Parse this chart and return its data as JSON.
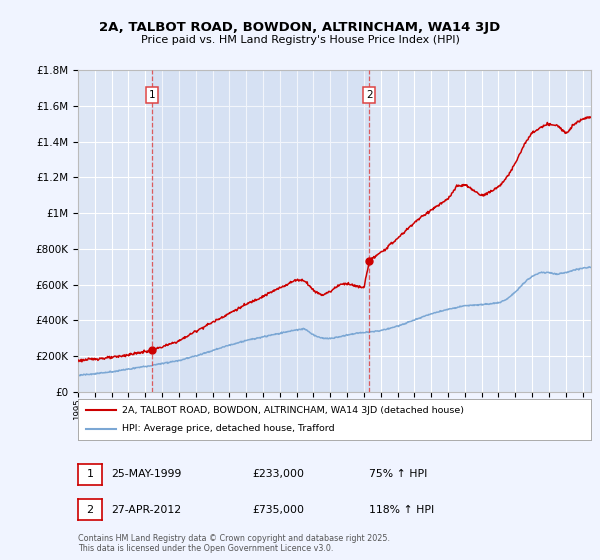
{
  "title": "2A, TALBOT ROAD, BOWDON, ALTRINCHAM, WA14 3JD",
  "subtitle": "Price paid vs. HM Land Registry's House Price Index (HPI)",
  "bg_color": "#f0f4ff",
  "plot_bg_color": "#dde6f5",
  "grid_color": "#ffffff",
  "red_line_color": "#cc0000",
  "blue_line_color": "#7ba7d4",
  "marker_color": "#cc0000",
  "dashed_line_color": "#dd4444",
  "legend_label_red": "2A, TALBOT ROAD, BOWDON, ALTRINCHAM, WA14 3JD (detached house)",
  "legend_label_blue": "HPI: Average price, detached house, Trafford",
  "purchase1_x": 1999.39,
  "purchase1_y": 233000,
  "purchase2_x": 2012.32,
  "purchase2_y": 735000,
  "footer": "Contains HM Land Registry data © Crown copyright and database right 2025.\nThis data is licensed under the Open Government Licence v3.0.",
  "ann1_date": "25-MAY-1999",
  "ann1_price": "£233,000",
  "ann1_hpi": "75% ↑ HPI",
  "ann2_date": "27-APR-2012",
  "ann2_price": "£735,000",
  "ann2_hpi": "118% ↑ HPI",
  "ylim": [
    0,
    1800000
  ],
  "xlim_left": 1995,
  "xlim_right": 2025.5,
  "red_anchors": [
    [
      1995.0,
      175000
    ],
    [
      1996.0,
      185000
    ],
    [
      1997.0,
      192000
    ],
    [
      1998.0,
      208000
    ],
    [
      1999.39,
      233000
    ],
    [
      2000.0,
      252000
    ],
    [
      2001.0,
      285000
    ],
    [
      2002.0,
      340000
    ],
    [
      2003.0,
      390000
    ],
    [
      2004.0,
      440000
    ],
    [
      2005.0,
      490000
    ],
    [
      2006.0,
      535000
    ],
    [
      2007.0,
      582000
    ],
    [
      2008.0,
      628000
    ],
    [
      2008.5,
      622000
    ],
    [
      2009.0,
      568000
    ],
    [
      2009.5,
      542000
    ],
    [
      2010.0,
      562000
    ],
    [
      2010.5,
      598000
    ],
    [
      2011.0,
      608000
    ],
    [
      2011.5,
      592000
    ],
    [
      2012.0,
      582000
    ],
    [
      2012.32,
      735000
    ],
    [
      2013.0,
      778000
    ],
    [
      2014.0,
      858000
    ],
    [
      2015.0,
      948000
    ],
    [
      2016.0,
      1018000
    ],
    [
      2017.0,
      1078000
    ],
    [
      2017.5,
      1148000
    ],
    [
      2018.0,
      1158000
    ],
    [
      2018.5,
      1128000
    ],
    [
      2019.0,
      1098000
    ],
    [
      2019.5,
      1118000
    ],
    [
      2020.0,
      1148000
    ],
    [
      2020.5,
      1198000
    ],
    [
      2021.0,
      1278000
    ],
    [
      2021.5,
      1378000
    ],
    [
      2022.0,
      1448000
    ],
    [
      2022.5,
      1478000
    ],
    [
      2023.0,
      1498000
    ],
    [
      2023.5,
      1488000
    ],
    [
      2024.0,
      1448000
    ],
    [
      2024.5,
      1498000
    ],
    [
      2025.0,
      1528000
    ],
    [
      2025.5,
      1538000
    ]
  ],
  "blue_anchors": [
    [
      1995.0,
      93000
    ],
    [
      1996.0,
      102000
    ],
    [
      1997.0,
      113000
    ],
    [
      1998.0,
      128000
    ],
    [
      1999.0,
      143000
    ],
    [
      1999.39,
      148000
    ],
    [
      2000.0,
      160000
    ],
    [
      2001.0,
      176000
    ],
    [
      2002.0,
      202000
    ],
    [
      2003.0,
      232000
    ],
    [
      2004.0,
      262000
    ],
    [
      2005.0,
      288000
    ],
    [
      2006.0,
      308000
    ],
    [
      2007.0,
      328000
    ],
    [
      2008.0,
      348000
    ],
    [
      2008.5,
      352000
    ],
    [
      2009.0,
      318000
    ],
    [
      2009.5,
      302000
    ],
    [
      2010.0,
      298000
    ],
    [
      2010.5,
      308000
    ],
    [
      2011.0,
      318000
    ],
    [
      2011.5,
      328000
    ],
    [
      2012.0,
      333000
    ],
    [
      2012.32,
      335000
    ],
    [
      2013.0,
      343000
    ],
    [
      2014.0,
      368000
    ],
    [
      2015.0,
      402000
    ],
    [
      2016.0,
      438000
    ],
    [
      2017.0,
      462000
    ],
    [
      2018.0,
      482000
    ],
    [
      2019.0,
      488000
    ],
    [
      2020.0,
      498000
    ],
    [
      2020.5,
      518000
    ],
    [
      2021.0,
      558000
    ],
    [
      2021.5,
      608000
    ],
    [
      2022.0,
      648000
    ],
    [
      2022.5,
      668000
    ],
    [
      2023.0,
      668000
    ],
    [
      2023.5,
      658000
    ],
    [
      2024.0,
      668000
    ],
    [
      2024.5,
      682000
    ],
    [
      2025.0,
      692000
    ],
    [
      2025.5,
      698000
    ]
  ]
}
